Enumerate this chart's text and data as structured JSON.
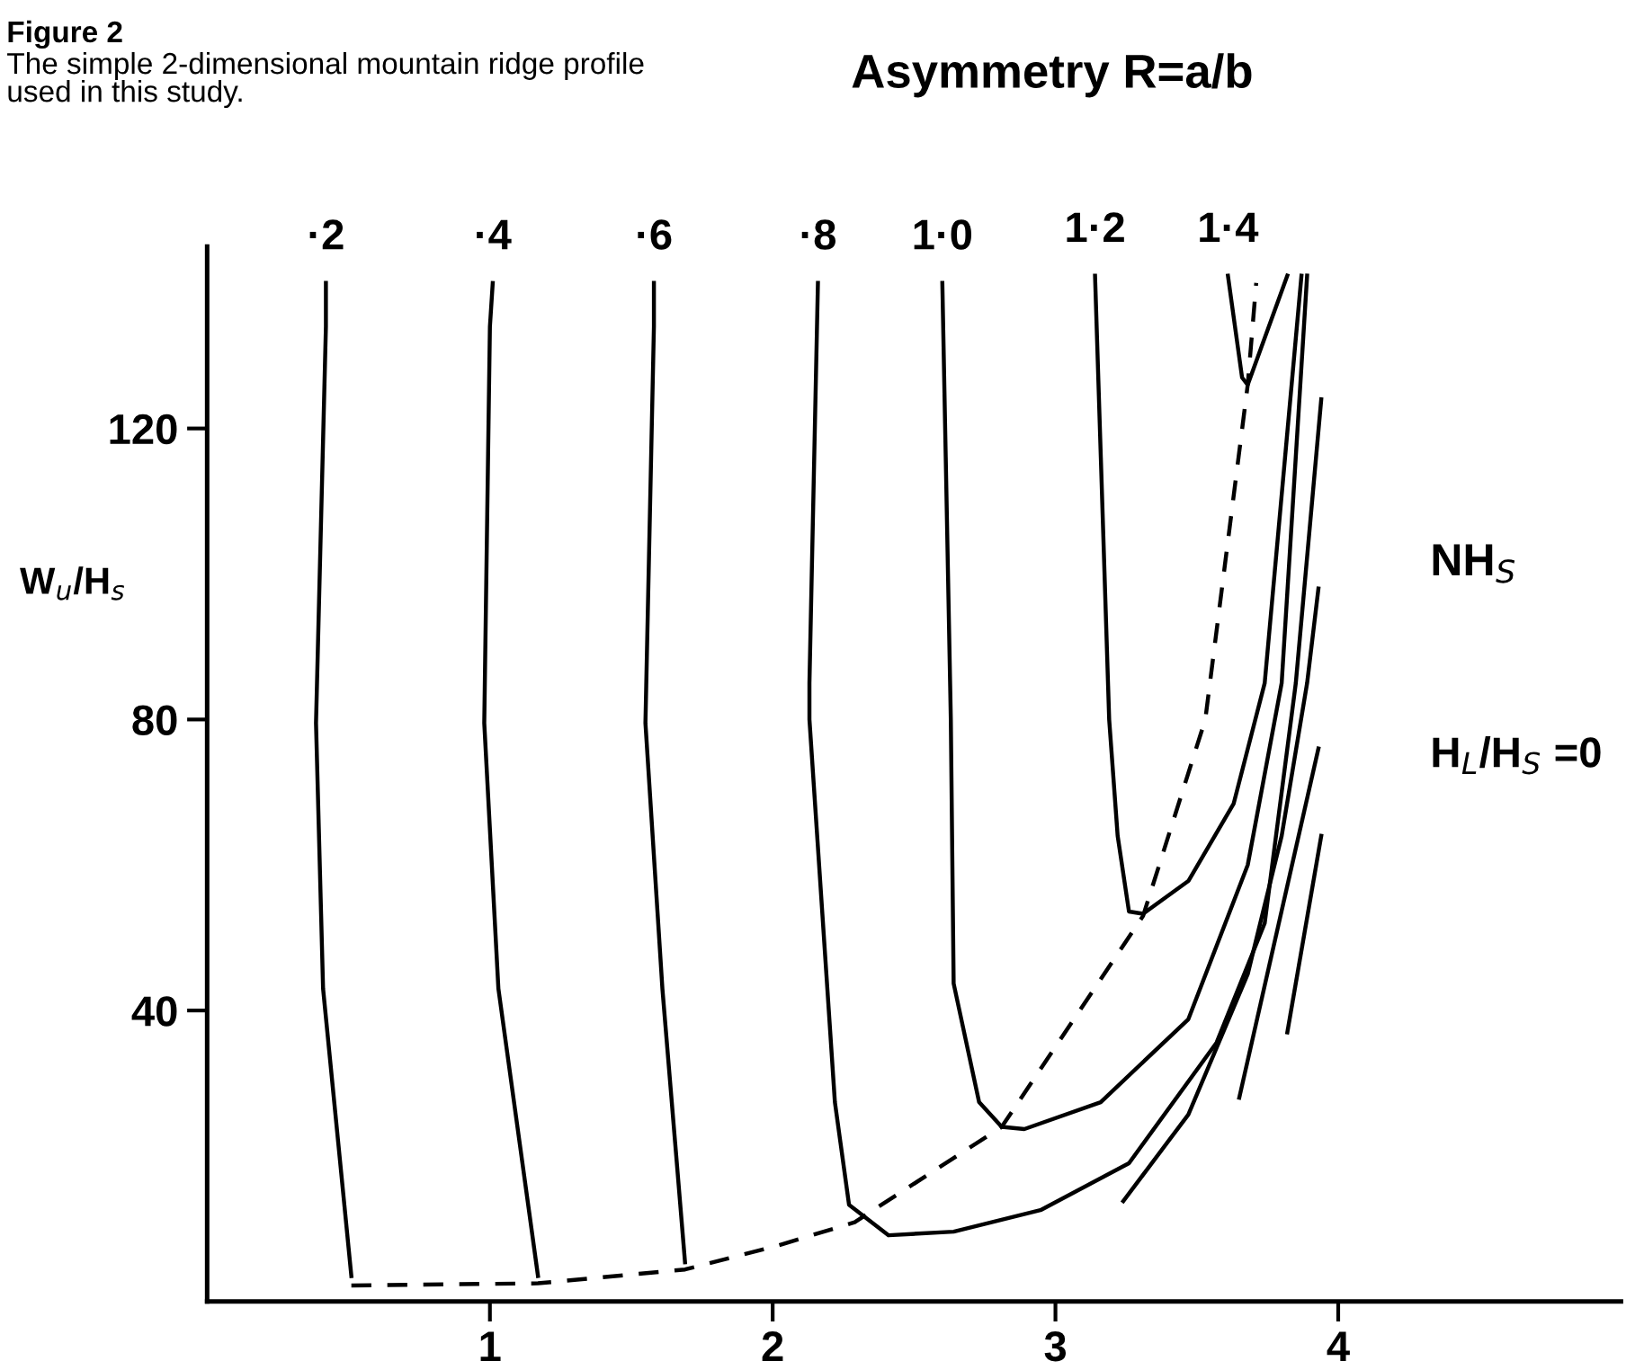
{
  "chart_data": {
    "type": "line",
    "title": "Asymmetry R=a/b",
    "ylabel": "W$_{u}$/H$_{s}$",
    "xlim": [
      0,
      5
    ],
    "ylim": [
      0,
      145
    ],
    "xticks": [
      1,
      2,
      3,
      4
    ],
    "yticks": [
      40,
      80,
      120
    ],
    "grid": false,
    "legend": false,
    "marker": "none",
    "annotations": [
      "Figure 2",
      "The simple 2-dimensional mountain ridge profile used in this study.",
      "NH$_{S}$",
      "H$_{L}$/H$_{S}$ =0"
    ],
    "series": [
      {
        "name": "·2",
        "color": "#000000",
        "x": [
          0.42,
          0.42,
          0.385,
          0.41,
          0.51
        ],
        "values": [
          140,
          134,
          79.5,
          43,
          3.5
        ]
      },
      {
        "name": "·4",
        "color": "#000000",
        "x": [
          1.01,
          1.0,
          0.98,
          1.03,
          1.17
        ],
        "values": [
          140,
          134,
          79.5,
          43,
          3.5
        ]
      },
      {
        "name": "·6",
        "color": "#000000",
        "x": [
          1.58,
          1.58,
          1.55,
          1.61,
          1.69
        ],
        "values": [
          140,
          134,
          79.5,
          43,
          5.4
        ]
      },
      {
        "name": "·8",
        "color": "#000000",
        "x": [
          2.16,
          2.13,
          2.13,
          2.22,
          2.27,
          2.41,
          2.64,
          2.95,
          3.26,
          3.57,
          3.74,
          3.85,
          3.94
        ],
        "values": [
          140,
          85,
          80,
          27.4,
          13.3,
          9.1,
          9.6,
          12.6,
          19,
          35.6,
          52,
          85,
          124
        ]
      },
      {
        "name": "1·0",
        "color": "#000000",
        "x": [
          2.6,
          2.63,
          2.64,
          2.73,
          2.81,
          2.89,
          3.16,
          3.47,
          3.68,
          3.8,
          3.89
        ],
        "values": [
          140,
          80,
          43.7,
          27.4,
          24,
          23.7,
          27.4,
          38.8,
          60,
          85,
          141
        ]
      },
      {
        "name": "1·2",
        "color": "#000000",
        "x": [
          3.14,
          3.19,
          3.22,
          3.26,
          3.31,
          3.47,
          3.63,
          3.74,
          3.87
        ],
        "values": [
          141,
          80,
          64,
          53.6,
          53.3,
          57.8,
          68.4,
          85,
          141
        ]
      },
      {
        "name": "1·4",
        "color": "#000000",
        "x": [
          3.61,
          3.66,
          3.68,
          3.82
        ],
        "values": [
          141,
          127,
          126,
          141
        ]
      },
      {
        "color": "#000000",
        "x": [
          3.24,
          3.47,
          3.68,
          3.8,
          3.89,
          3.93
        ],
        "values": [
          13.8,
          25.7,
          45,
          64,
          85,
          98
        ]
      },
      {
        "color": "#000000",
        "x": [
          3.65,
          3.93
        ],
        "values": [
          28,
          76
        ]
      },
      {
        "color": "#000000",
        "x": [
          3.82,
          3.94
        ],
        "values": [
          37,
          64
        ]
      },
      {
        "color": "#000000",
        "line_style": "dashed",
        "x": [
          0.51,
          1.17,
          1.69,
          2.02,
          2.29,
          2.81,
          3.31,
          3.53,
          3.68,
          3.71
        ],
        "values": [
          2.2,
          2.5,
          4.4,
          7.7,
          10.9,
          24,
          53,
          80,
          126,
          140
        ]
      }
    ]
  }
}
